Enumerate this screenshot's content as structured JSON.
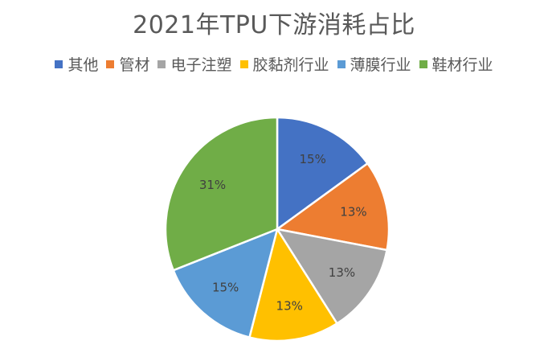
{
  "chart_data": {
    "type": "pie",
    "title": "2021年TPU下游消耗占比",
    "legend_position": "top",
    "categories": [
      "其他",
      "管材",
      "电子注塑",
      "胶黏剂行业",
      "薄膜行业",
      "鞋材行业"
    ],
    "values": [
      15,
      13,
      13,
      13,
      15,
      31
    ],
    "labels": [
      "15%",
      "13%",
      "13%",
      "13%",
      "15%",
      "31%"
    ],
    "colors": [
      "#4472C4",
      "#ED7D31",
      "#A5A5A5",
      "#FFC000",
      "#5B9BD5",
      "#70AD47"
    ]
  }
}
